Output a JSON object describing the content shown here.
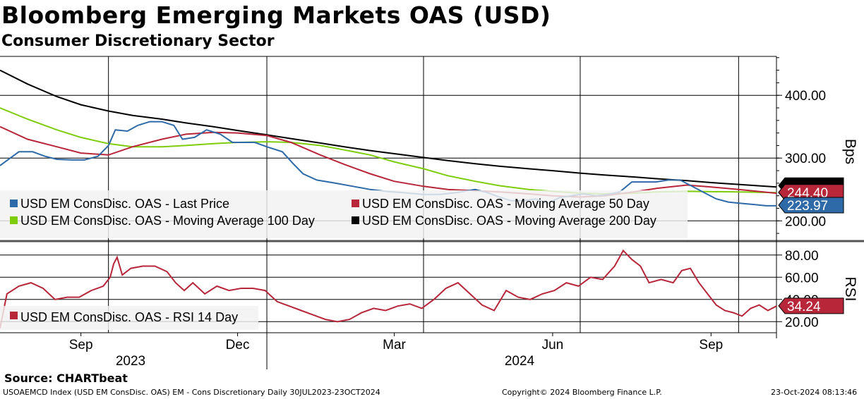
{
  "header": {
    "title": "Bloomberg Emerging Markets OAS (USD)",
    "subtitle": "Consumer Discretionary Sector"
  },
  "footer": {
    "source": "Source: CHARTbeat",
    "index_info": "USOAEMCD Index (USD EM ConsDisc. OAS) EM - Cons Discretionary  Daily 30JUL2023-23OCT2024",
    "copyright": "Copyright© 2024 Bloomberg Finance L.P.",
    "timestamp": "23-Oct-2024 08:13:46"
  },
  "colors": {
    "last_price": "#2f6aa8",
    "ma50": "#b8263a",
    "ma100": "#7dcd0c",
    "ma200": "#000000",
    "rsi": "#b8263a",
    "legend_bg": "#f2f2f2"
  },
  "chart_data": [
    {
      "type": "line",
      "panel": "upper",
      "ylabel": "Bps",
      "ylim": [
        170,
        462
      ],
      "yticks": [
        "400.00",
        "300.00",
        "200.00"
      ],
      "ytick_values": [
        400,
        300,
        200
      ],
      "x_range": [
        "2023-07-30",
        "2024-10-23"
      ],
      "xticks": [
        "Sep",
        "Dec",
        "Mar",
        "Jun",
        "Sep"
      ],
      "xtick_dates": [
        "2023-09-15",
        "2023-12-15",
        "2024-03-15",
        "2024-06-15",
        "2024-09-15"
      ],
      "year_labels": [
        "2023",
        "2024"
      ],
      "grid": true,
      "legend_position": "bottom-left",
      "series": [
        {
          "name": "USD EM ConsDisc. OAS - Last Price",
          "last_value_label": "223.97",
          "points": [
            [
              "2023-07-30",
              288
            ],
            [
              "2023-08-05",
              300
            ],
            [
              "2023-08-10",
              310
            ],
            [
              "2023-08-18",
              310
            ],
            [
              "2023-08-25",
              303
            ],
            [
              "2023-09-01",
              298
            ],
            [
              "2023-09-10",
              297
            ],
            [
              "2023-09-17",
              297
            ],
            [
              "2023-09-25",
              303
            ],
            [
              "2023-10-01",
              320
            ],
            [
              "2023-10-05",
              345
            ],
            [
              "2023-10-12",
              343
            ],
            [
              "2023-10-18",
              352
            ],
            [
              "2023-10-25",
              358
            ],
            [
              "2023-11-01",
              358
            ],
            [
              "2023-11-08",
              352
            ],
            [
              "2023-11-13",
              330
            ],
            [
              "2023-11-20",
              333
            ],
            [
              "2023-11-27",
              345
            ],
            [
              "2023-12-05",
              338
            ],
            [
              "2023-12-12",
              325
            ],
            [
              "2023-12-18",
              325
            ],
            [
              "2023-12-25",
              325
            ],
            [
              "2024-01-01",
              318
            ],
            [
              "2024-01-10",
              310
            ],
            [
              "2024-01-16",
              292
            ],
            [
              "2024-01-22",
              275
            ],
            [
              "2024-01-30",
              265
            ],
            [
              "2024-02-10",
              260
            ],
            [
              "2024-02-20",
              255
            ],
            [
              "2024-03-01",
              250
            ],
            [
              "2024-03-10",
              247
            ],
            [
              "2024-03-20",
              245
            ],
            [
              "2024-04-01",
              242
            ],
            [
              "2024-04-10",
              242
            ],
            [
              "2024-04-20",
              245
            ],
            [
              "2024-05-01",
              250
            ],
            [
              "2024-05-08",
              245
            ],
            [
              "2024-05-15",
              238
            ],
            [
              "2024-05-22",
              232
            ],
            [
              "2024-05-29",
              232
            ],
            [
              "2024-06-05",
              235
            ],
            [
              "2024-06-12",
              228
            ],
            [
              "2024-06-19",
              237
            ],
            [
              "2024-06-26",
              240
            ],
            [
              "2024-07-03",
              243
            ],
            [
              "2024-07-10",
              240
            ],
            [
              "2024-07-17",
              242
            ],
            [
              "2024-07-24",
              246
            ],
            [
              "2024-07-31",
              262
            ],
            [
              "2024-08-07",
              262
            ],
            [
              "2024-08-14",
              262
            ],
            [
              "2024-08-21",
              265
            ],
            [
              "2024-08-28",
              265
            ],
            [
              "2024-09-04",
              255
            ],
            [
              "2024-09-11",
              245
            ],
            [
              "2024-09-18",
              235
            ],
            [
              "2024-09-25",
              230
            ],
            [
              "2024-10-02",
              228
            ],
            [
              "2024-10-10",
              226
            ],
            [
              "2024-10-17",
              224
            ],
            [
              "2024-10-23",
              224
            ]
          ]
        },
        {
          "name": "USD EM ConsDisc. OAS - Moving Average 50 Day",
          "last_value_label": "244.40",
          "points": [
            [
              "2023-07-30",
              350
            ],
            [
              "2023-08-15",
              330
            ],
            [
              "2023-09-01",
              318
            ],
            [
              "2023-09-15",
              308
            ],
            [
              "2023-10-01",
              305
            ],
            [
              "2023-10-15",
              318
            ],
            [
              "2023-11-01",
              330
            ],
            [
              "2023-11-15",
              338
            ],
            [
              "2023-12-01",
              341
            ],
            [
              "2023-12-15",
              340
            ],
            [
              "2024-01-01",
              336
            ],
            [
              "2024-01-15",
              325
            ],
            [
              "2024-02-01",
              305
            ],
            [
              "2024-02-15",
              290
            ],
            [
              "2024-03-01",
              275
            ],
            [
              "2024-03-15",
              263
            ],
            [
              "2024-04-01",
              255
            ],
            [
              "2024-04-15",
              250
            ],
            [
              "2024-05-01",
              248
            ],
            [
              "2024-05-15",
              246
            ],
            [
              "2024-06-01",
              243
            ],
            [
              "2024-06-15",
              240
            ],
            [
              "2024-07-01",
              238
            ],
            [
              "2024-07-15",
              240
            ],
            [
              "2024-08-01",
              246
            ],
            [
              "2024-08-15",
              252
            ],
            [
              "2024-09-01",
              257
            ],
            [
              "2024-09-15",
              254
            ],
            [
              "2024-10-01",
              250
            ],
            [
              "2024-10-23",
              244
            ]
          ]
        },
        {
          "name": "USD EM ConsDisc. OAS - Moving Average 100 Day",
          "last_value_label": "",
          "points": [
            [
              "2023-07-30",
              380
            ],
            [
              "2023-08-15",
              362
            ],
            [
              "2023-09-01",
              345
            ],
            [
              "2023-09-15",
              333
            ],
            [
              "2023-10-01",
              323
            ],
            [
              "2023-10-15",
              318
            ],
            [
              "2023-11-01",
              318
            ],
            [
              "2023-11-15",
              320
            ],
            [
              "2023-12-01",
              323
            ],
            [
              "2023-12-15",
              325
            ],
            [
              "2024-01-01",
              326
            ],
            [
              "2024-01-15",
              325
            ],
            [
              "2024-02-01",
              320
            ],
            [
              "2024-02-15",
              313
            ],
            [
              "2024-03-01",
              305
            ],
            [
              "2024-03-15",
              294
            ],
            [
              "2024-04-01",
              283
            ],
            [
              "2024-04-15",
              272
            ],
            [
              "2024-05-01",
              263
            ],
            [
              "2024-05-15",
              256
            ],
            [
              "2024-06-01",
              250
            ],
            [
              "2024-06-15",
              247
            ],
            [
              "2024-07-01",
              244
            ],
            [
              "2024-07-15",
              243
            ],
            [
              "2024-08-01",
              244
            ],
            [
              "2024-08-15",
              246
            ],
            [
              "2024-09-01",
              247
            ],
            [
              "2024-10-01",
              246
            ],
            [
              "2024-10-23",
              245
            ]
          ]
        },
        {
          "name": "USD EM ConsDisc. OAS - Moving Average 200 Day",
          "last_value_label": "",
          "points": [
            [
              "2023-07-30",
              440
            ],
            [
              "2023-08-15",
              418
            ],
            [
              "2023-09-01",
              398
            ],
            [
              "2023-09-15",
              385
            ],
            [
              "2023-10-01",
              375
            ],
            [
              "2023-10-15",
              368
            ],
            [
              "2023-11-01",
              362
            ],
            [
              "2023-11-15",
              356
            ],
            [
              "2023-12-01",
              350
            ],
            [
              "2023-12-15",
              344
            ],
            [
              "2024-01-01",
              337
            ],
            [
              "2024-01-15",
              331
            ],
            [
              "2024-02-01",
              324
            ],
            [
              "2024-02-15",
              318
            ],
            [
              "2024-03-01",
              312
            ],
            [
              "2024-03-15",
              307
            ],
            [
              "2024-04-01",
              301
            ],
            [
              "2024-04-15",
              296
            ],
            [
              "2024-05-01",
              291
            ],
            [
              "2024-05-15",
              287
            ],
            [
              "2024-06-01",
              283
            ],
            [
              "2024-06-15",
              280
            ],
            [
              "2024-07-01",
              276
            ],
            [
              "2024-07-15",
              273
            ],
            [
              "2024-08-01",
              270
            ],
            [
              "2024-08-15",
              267
            ],
            [
              "2024-09-01",
              264
            ],
            [
              "2024-09-15",
              261
            ],
            [
              "2024-10-01",
              258
            ],
            [
              "2024-10-23",
              254
            ]
          ]
        }
      ]
    },
    {
      "type": "line",
      "panel": "lower",
      "ylabel": "RSI",
      "ylim": [
        10,
        90
      ],
      "yticks": [
        "80.00",
        "60.00",
        "40.00",
        "20.00"
      ],
      "ytick_values": [
        80,
        60,
        40,
        20
      ],
      "grid": true,
      "legend_position": "bottom-left",
      "series": [
        {
          "name": "USD EM ConsDisc. OAS - RSI 14 Day",
          "last_value_label": "34.24",
          "points": [
            [
              "2023-07-30",
              14
            ],
            [
              "2023-08-03",
              45
            ],
            [
              "2023-08-10",
              52
            ],
            [
              "2023-08-17",
              55
            ],
            [
              "2023-08-24",
              50
            ],
            [
              "2023-08-31",
              40
            ],
            [
              "2023-09-07",
              42
            ],
            [
              "2023-09-14",
              42
            ],
            [
              "2023-09-21",
              48
            ],
            [
              "2023-09-28",
              52
            ],
            [
              "2023-10-02",
              60
            ],
            [
              "2023-10-04",
              72
            ],
            [
              "2023-10-06",
              78
            ],
            [
              "2023-10-09",
              62
            ],
            [
              "2023-10-14",
              68
            ],
            [
              "2023-10-21",
              70
            ],
            [
              "2023-10-28",
              70
            ],
            [
              "2023-11-04",
              65
            ],
            [
              "2023-11-09",
              55
            ],
            [
              "2023-11-14",
              48
            ],
            [
              "2023-11-19",
              55
            ],
            [
              "2023-11-26",
              45
            ],
            [
              "2023-12-03",
              52
            ],
            [
              "2023-12-10",
              48
            ],
            [
              "2023-12-17",
              50
            ],
            [
              "2023-12-24",
              50
            ],
            [
              "2023-12-31",
              48
            ],
            [
              "2024-01-07",
              38
            ],
            [
              "2024-01-14",
              34
            ],
            [
              "2024-01-21",
              30
            ],
            [
              "2024-01-28",
              26
            ],
            [
              "2024-02-04",
              22
            ],
            [
              "2024-02-11",
              20
            ],
            [
              "2024-02-18",
              22
            ],
            [
              "2024-02-25",
              28
            ],
            [
              "2024-03-03",
              32
            ],
            [
              "2024-03-10",
              30
            ],
            [
              "2024-03-17",
              34
            ],
            [
              "2024-03-24",
              36
            ],
            [
              "2024-03-31",
              32
            ],
            [
              "2024-04-07",
              40
            ],
            [
              "2024-04-14",
              50
            ],
            [
              "2024-04-21",
              55
            ],
            [
              "2024-04-28",
              45
            ],
            [
              "2024-05-05",
              35
            ],
            [
              "2024-05-12",
              30
            ],
            [
              "2024-05-19",
              48
            ],
            [
              "2024-05-26",
              42
            ],
            [
              "2024-06-02",
              40
            ],
            [
              "2024-06-09",
              45
            ],
            [
              "2024-06-16",
              48
            ],
            [
              "2024-06-23",
              55
            ],
            [
              "2024-06-30",
              52
            ],
            [
              "2024-07-07",
              60
            ],
            [
              "2024-07-14",
              58
            ],
            [
              "2024-07-21",
              70
            ],
            [
              "2024-07-26",
              84
            ],
            [
              "2024-07-31",
              76
            ],
            [
              "2024-08-05",
              70
            ],
            [
              "2024-08-10",
              55
            ],
            [
              "2024-08-17",
              58
            ],
            [
              "2024-08-24",
              55
            ],
            [
              "2024-08-29",
              66
            ],
            [
              "2024-09-03",
              68
            ],
            [
              "2024-09-08",
              55
            ],
            [
              "2024-09-13",
              45
            ],
            [
              "2024-09-18",
              35
            ],
            [
              "2024-09-23",
              30
            ],
            [
              "2024-09-28",
              28
            ],
            [
              "2024-10-03",
              25
            ],
            [
              "2024-10-08",
              32
            ],
            [
              "2024-10-13",
              35
            ],
            [
              "2024-10-18",
              30
            ],
            [
              "2024-10-23",
              34
            ]
          ]
        }
      ]
    }
  ]
}
